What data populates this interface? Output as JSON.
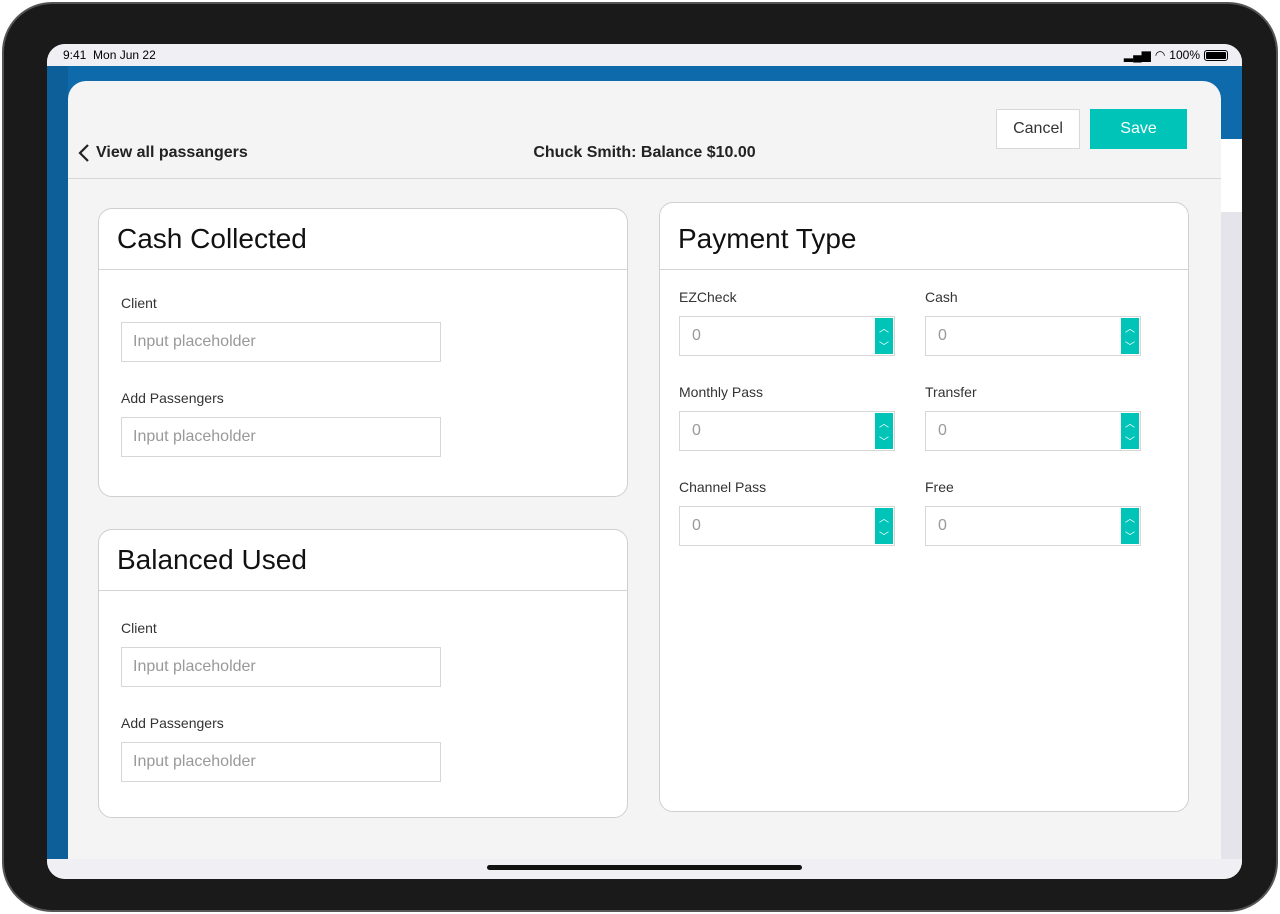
{
  "status_bar": {
    "time": "9:41",
    "date": "Mon Jun 22",
    "battery": "100%"
  },
  "header": {
    "back_label": "View all passangers",
    "title": "Chuck Smith: Balance $10.00",
    "cancel_label": "Cancel",
    "save_label": "Save"
  },
  "cash_collected": {
    "title": "Cash Collected",
    "client_label": "Client",
    "client_placeholder": "Input placeholder",
    "passengers_label": "Add Passengers",
    "passengers_placeholder": "Input placeholder"
  },
  "balanced_used": {
    "title": "Balanced Used",
    "client_label": "Client",
    "client_placeholder": "Input placeholder",
    "passengers_label": "Add Passengers",
    "passengers_placeholder": "Input placeholder"
  },
  "payment_type": {
    "title": "Payment Type",
    "fields": [
      {
        "label": "EZCheck",
        "placeholder": "0"
      },
      {
        "label": "Cash",
        "placeholder": "0"
      },
      {
        "label": "Monthly Pass",
        "placeholder": "0"
      },
      {
        "label": "Transfer",
        "placeholder": "0"
      },
      {
        "label": "Channel Pass",
        "placeholder": "0"
      },
      {
        "label": "Free",
        "placeholder": "0"
      }
    ]
  },
  "colors": {
    "accent": "#00c4b8",
    "brand_blue": "#0e6aab"
  }
}
